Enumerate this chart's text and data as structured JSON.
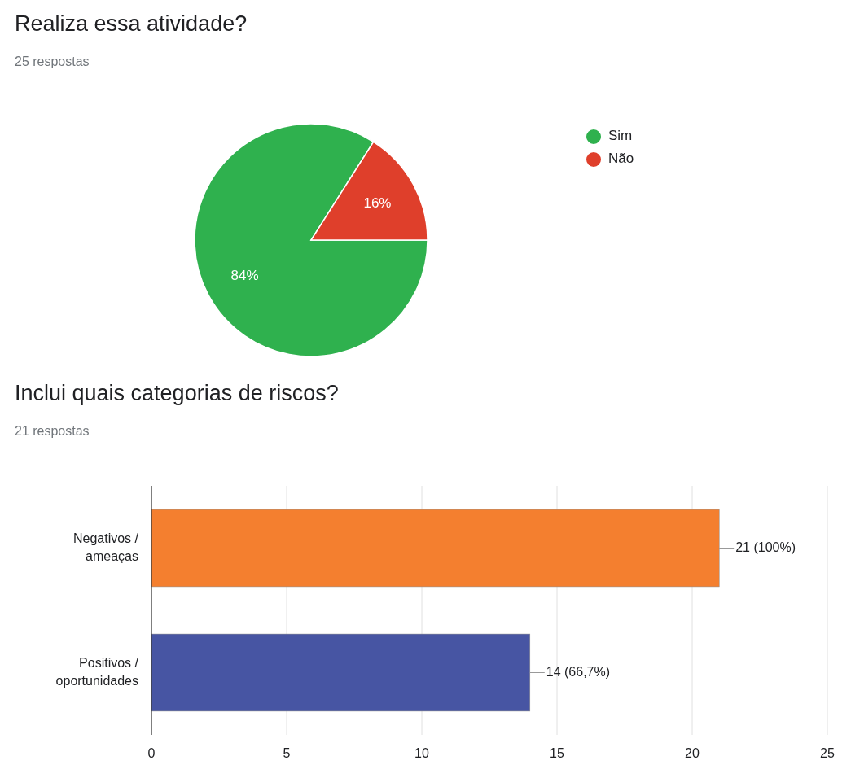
{
  "chart_data": [
    {
      "type": "pie",
      "title": "Realiza essa atividade?",
      "subtitle": "25 respostas",
      "categories": [
        "Sim",
        "Não"
      ],
      "values": [
        84,
        16
      ],
      "colors": [
        "#2fb14e",
        "#df3f2b"
      ],
      "value_labels": [
        "84%",
        "16%"
      ],
      "legend": "right"
    },
    {
      "type": "bar",
      "title": "Inclui quais categorias de riscos?",
      "subtitle": "21 respostas",
      "orientation": "horizontal",
      "categories": [
        "Negativos / ameaças",
        "Positivos / oportunidades"
      ],
      "values": [
        21,
        14
      ],
      "colors": [
        "#f47f2f",
        "#4755a3"
      ],
      "value_labels": [
        "21 (100%)",
        "14 (66,7%)"
      ],
      "xlim": [
        0,
        25
      ],
      "xticks": [
        0,
        5,
        10,
        15,
        20,
        25
      ],
      "grid": "x",
      "legend": false
    }
  ]
}
